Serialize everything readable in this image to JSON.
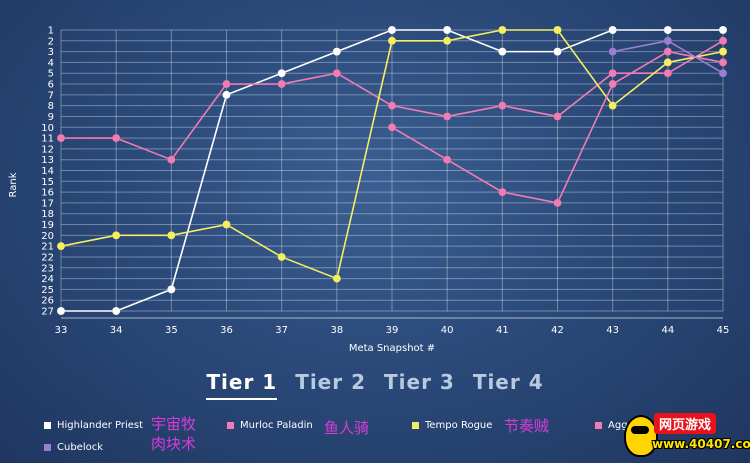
{
  "chart_data": {
    "type": "line",
    "xlabel": "Meta Snapshot #",
    "ylabel": "Rank",
    "x": [
      33,
      34,
      35,
      36,
      37,
      38,
      39,
      40,
      41,
      42,
      43,
      44,
      45
    ],
    "ylim": [
      1,
      27
    ],
    "y_inverted": true,
    "yticks": [
      1,
      2,
      3,
      4,
      5,
      6,
      7,
      8,
      9,
      10,
      11,
      12,
      13,
      14,
      15,
      16,
      17,
      18,
      19,
      20,
      21,
      22,
      23,
      24,
      25,
      26,
      27
    ],
    "grid": true,
    "legend_position": "bottom",
    "series": [
      {
        "name": "Highlander Priest",
        "color": "#ffffff",
        "points": [
          [
            33,
            27
          ],
          [
            34,
            27
          ],
          [
            35,
            25
          ],
          [
            36,
            7
          ],
          [
            37,
            5
          ],
          [
            38,
            3
          ],
          [
            39,
            1
          ],
          [
            40,
            1
          ],
          [
            41,
            3
          ],
          [
            42,
            3
          ],
          [
            43,
            1
          ],
          [
            44,
            1
          ],
          [
            45,
            1
          ]
        ]
      },
      {
        "name": "Murloc Paladin",
        "color": "#f07cb4",
        "points": [
          [
            33,
            11
          ],
          [
            34,
            11
          ],
          [
            35,
            13
          ],
          [
            36,
            6
          ],
          [
            37,
            6
          ],
          [
            38,
            5
          ],
          [
            39,
            8
          ],
          [
            40,
            9
          ],
          [
            41,
            8
          ],
          [
            42,
            9
          ],
          [
            43,
            5
          ],
          [
            44,
            5
          ],
          [
            45,
            2
          ]
        ]
      },
      {
        "name": "Tempo Rogue",
        "color": "#f5ee63",
        "points": [
          [
            33,
            21
          ],
          [
            34,
            20
          ],
          [
            35,
            20
          ],
          [
            36,
            19
          ],
          [
            37,
            22
          ],
          [
            38,
            24
          ],
          [
            39,
            2
          ],
          [
            40,
            2
          ],
          [
            41,
            1
          ],
          [
            42,
            1
          ],
          [
            43,
            8
          ],
          [
            44,
            4
          ],
          [
            45,
            3
          ]
        ]
      },
      {
        "name": "Aggro",
        "color": "#f07cb4",
        "points": [
          [
            39,
            10
          ],
          [
            40,
            13
          ],
          [
            41,
            16
          ],
          [
            42,
            17
          ],
          [
            43,
            6
          ],
          [
            44,
            3
          ],
          [
            45,
            4
          ]
        ]
      },
      {
        "name": "Cubelock",
        "color": "#9b7fd4",
        "points": [
          [
            43,
            3
          ],
          [
            44,
            2
          ],
          [
            45,
            5
          ]
        ]
      }
    ]
  },
  "tiers": [
    "Tier 1",
    "Tier 2",
    "Tier 3",
    "Tier 4"
  ],
  "active_tier": 0,
  "legend": [
    {
      "label": "Highlander Priest",
      "color": "#ffffff"
    },
    {
      "label": "Murloc Paladin",
      "color": "#f07cb4"
    },
    {
      "label": "Tempo Rogue",
      "color": "#f5ee63"
    },
    {
      "label": "Agg",
      "color": "#f07cb4"
    },
    {
      "label": "Cubelock",
      "color": "#9b7fd4"
    }
  ],
  "overlays": {
    "priest_cn": "宇宙牧\n肉块术",
    "paladin_cn": "鱼人骑",
    "rogue_cn": "节奏贼"
  },
  "logo": {
    "top": "网页游戏",
    "bottom": "www.40407.com"
  }
}
